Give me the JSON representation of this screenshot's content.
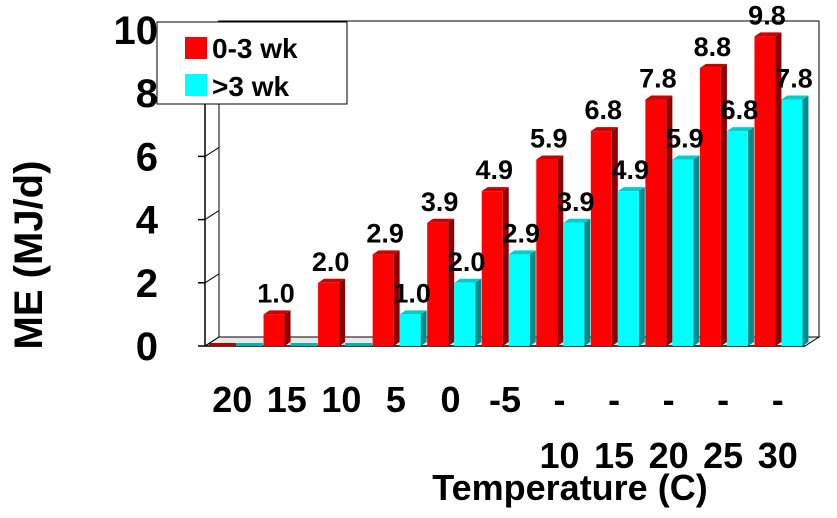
{
  "chart_data": {
    "type": "bar",
    "title": "",
    "xlabel": "Temperature (C)",
    "ylabel": "ME (MJ/d)",
    "ylim": [
      0,
      10
    ],
    "y_ticks": [
      "0",
      "2",
      "4",
      "6",
      "8",
      "10"
    ],
    "categories": [
      "20",
      "15",
      "10",
      "5",
      "0",
      "-5",
      "-10",
      "-15",
      "-20",
      "-25",
      "-30"
    ],
    "series": [
      {
        "name": "0-3 wk",
        "color": "#ff0000",
        "values": [
          0,
          1.0,
          2.0,
          2.9,
          3.9,
          4.9,
          5.9,
          6.8,
          7.8,
          8.8,
          9.8
        ],
        "labels": [
          "",
          "1.0",
          "2.0",
          "2.9",
          "3.9",
          "4.9",
          "5.9",
          "6.8",
          "7.8",
          "8.8",
          "9.8"
        ]
      },
      {
        "name": ">3 wk",
        "color": "#00ffff",
        "values": [
          0,
          0,
          0,
          1.0,
          2.0,
          2.9,
          3.9,
          4.9,
          5.9,
          6.8,
          7.8
        ],
        "labels": [
          "",
          "",
          "",
          "1.0",
          "2.0",
          "2.9",
          "3.9",
          "4.9",
          "5.9",
          "6.8",
          "7.8"
        ]
      }
    ],
    "legend_position": "top-left",
    "grid": false
  }
}
